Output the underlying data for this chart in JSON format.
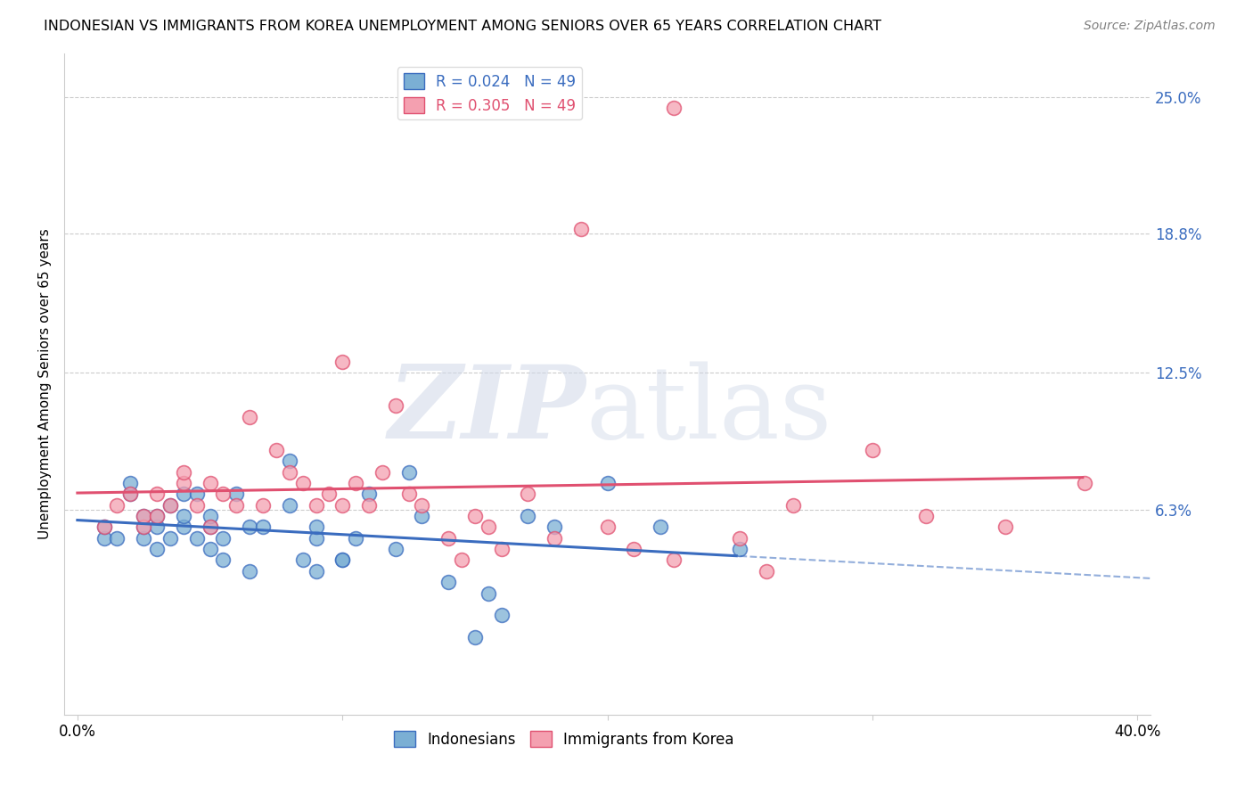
{
  "title": "INDONESIAN VS IMMIGRANTS FROM KOREA UNEMPLOYMENT AMONG SENIORS OVER 65 YEARS CORRELATION CHART",
  "source": "Source: ZipAtlas.com",
  "ylabel": "Unemployment Among Seniors over 65 years",
  "ytick_labels": [
    "25.0%",
    "18.8%",
    "12.5%",
    "6.3%"
  ],
  "ytick_values": [
    0.25,
    0.188,
    0.125,
    0.063
  ],
  "xmin": 0.0,
  "xmax": 0.4,
  "ymin": -0.03,
  "ymax": 0.27,
  "legend_r1": "R = 0.024   N = 49",
  "legend_r2": "R = 0.305   N = 49",
  "legend_label1": "Indonesians",
  "legend_label2": "Immigrants from Korea",
  "color_blue": "#7bafd4",
  "color_pink": "#f4a0b0",
  "trend_blue": "#3a6cbf",
  "trend_pink": "#e05070",
  "background": "#ffffff",
  "indonesian_x": [
    0.01,
    0.01,
    0.015,
    0.02,
    0.02,
    0.025,
    0.025,
    0.025,
    0.03,
    0.03,
    0.03,
    0.035,
    0.035,
    0.04,
    0.04,
    0.04,
    0.045,
    0.045,
    0.05,
    0.05,
    0.05,
    0.055,
    0.055,
    0.06,
    0.065,
    0.065,
    0.07,
    0.08,
    0.08,
    0.085,
    0.09,
    0.09,
    0.09,
    0.1,
    0.1,
    0.105,
    0.11,
    0.12,
    0.125,
    0.13,
    0.14,
    0.15,
    0.155,
    0.16,
    0.17,
    0.18,
    0.2,
    0.22,
    0.25
  ],
  "indonesian_y": [
    0.05,
    0.055,
    0.05,
    0.07,
    0.075,
    0.05,
    0.055,
    0.06,
    0.045,
    0.055,
    0.06,
    0.05,
    0.065,
    0.055,
    0.06,
    0.07,
    0.05,
    0.07,
    0.045,
    0.055,
    0.06,
    0.04,
    0.05,
    0.07,
    0.035,
    0.055,
    0.055,
    0.085,
    0.065,
    0.04,
    0.035,
    0.05,
    0.055,
    0.04,
    0.04,
    0.05,
    0.07,
    0.045,
    0.08,
    0.06,
    0.03,
    0.005,
    0.025,
    0.015,
    0.06,
    0.055,
    0.075,
    0.055,
    0.045
  ],
  "korean_x": [
    0.01,
    0.015,
    0.02,
    0.025,
    0.025,
    0.03,
    0.03,
    0.035,
    0.04,
    0.04,
    0.045,
    0.05,
    0.05,
    0.055,
    0.06,
    0.065,
    0.07,
    0.075,
    0.08,
    0.085,
    0.09,
    0.095,
    0.1,
    0.1,
    0.105,
    0.11,
    0.115,
    0.12,
    0.125,
    0.13,
    0.14,
    0.145,
    0.15,
    0.155,
    0.16,
    0.17,
    0.18,
    0.19,
    0.2,
    0.21,
    0.225,
    0.25,
    0.27,
    0.3,
    0.32,
    0.35,
    0.225,
    0.26,
    0.38
  ],
  "korean_y": [
    0.055,
    0.065,
    0.07,
    0.055,
    0.06,
    0.06,
    0.07,
    0.065,
    0.075,
    0.08,
    0.065,
    0.055,
    0.075,
    0.07,
    0.065,
    0.105,
    0.065,
    0.09,
    0.08,
    0.075,
    0.065,
    0.07,
    0.13,
    0.065,
    0.075,
    0.065,
    0.08,
    0.11,
    0.07,
    0.065,
    0.05,
    0.04,
    0.06,
    0.055,
    0.045,
    0.07,
    0.05,
    0.19,
    0.055,
    0.045,
    0.04,
    0.05,
    0.065,
    0.09,
    0.06,
    0.055,
    0.245,
    0.035,
    0.075
  ]
}
